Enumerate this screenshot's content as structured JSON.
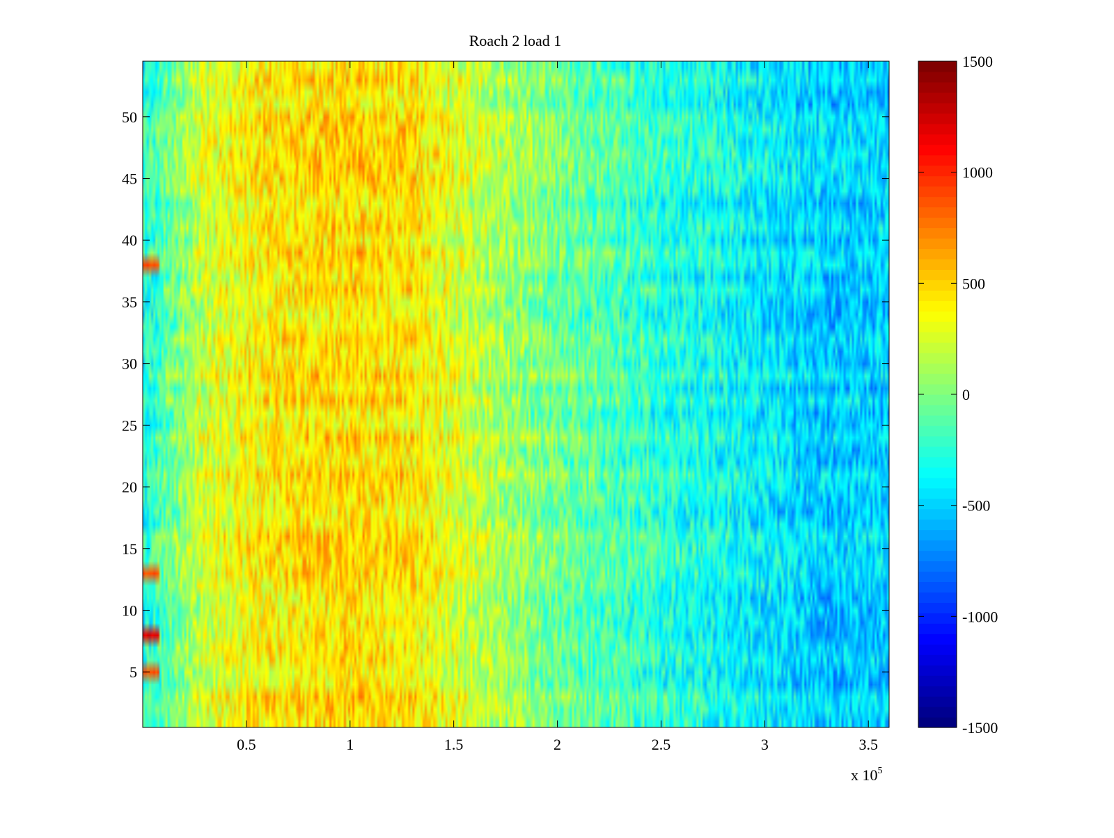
{
  "chart_data": {
    "type": "heatmap",
    "title": "Roach 2 load 1",
    "xlabel": "",
    "ylabel": "",
    "x_exponent_label": {
      "base": "x 10",
      "exp": "5"
    },
    "xlim": [
      0,
      3.6
    ],
    "ylim": [
      0.5,
      54.5
    ],
    "x_ticks": [
      0.5,
      1,
      1.5,
      2,
      2.5,
      3,
      3.5
    ],
    "x_tick_labels": [
      "0.5",
      "1",
      "1.5",
      "2",
      "2.5",
      "3",
      "3.5"
    ],
    "y_ticks": [
      5,
      10,
      15,
      20,
      25,
      30,
      35,
      40,
      45,
      50
    ],
    "y_tick_labels": [
      "5",
      "10",
      "15",
      "20",
      "25",
      "30",
      "35",
      "40",
      "45",
      "50"
    ],
    "rows": 54,
    "columns": 360,
    "colormap": "jet",
    "clim": [
      -1500,
      1500
    ],
    "colorbar_ticks": [
      1500,
      1000,
      500,
      0,
      -500,
      -1000,
      -1500
    ],
    "colorbar_tick_labels": [
      "1500",
      "1000",
      "500",
      "0",
      "-500",
      "-1000",
      "-1500"
    ],
    "trend": {
      "x_knots": [
        0,
        0.3,
        0.6,
        1.0,
        1.3,
        1.6,
        2.0,
        2.5,
        3.0,
        3.3,
        3.6
      ],
      "mean_values": [
        -300,
        250,
        420,
        480,
        430,
        200,
        -50,
        -250,
        -400,
        -520,
        -500
      ],
      "noise_amplitude": 260
    },
    "hot_rows_near_origin": [
      {
        "row": 5,
        "value": 900
      },
      {
        "row": 8,
        "value": 1200
      },
      {
        "row": 13,
        "value": 900
      },
      {
        "row": 38,
        "value": 900
      }
    ],
    "grid": false,
    "legend": "none"
  }
}
